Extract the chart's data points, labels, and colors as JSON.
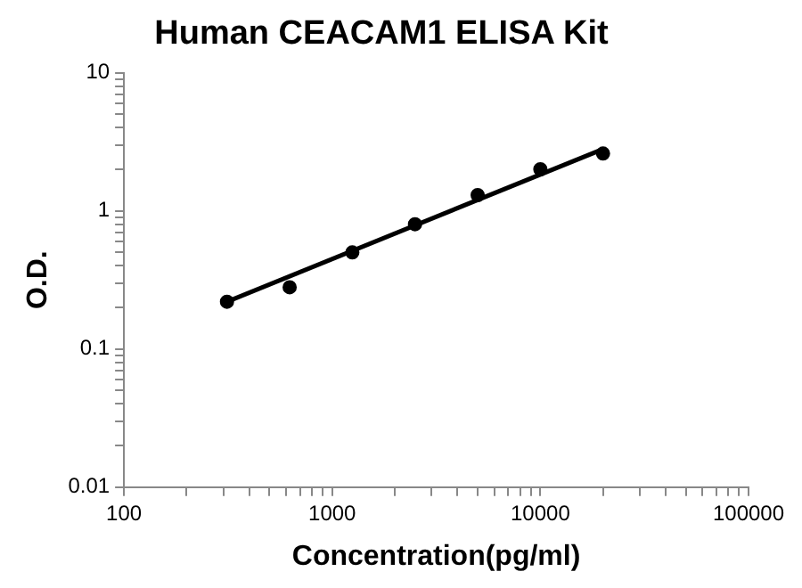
{
  "chart_data": {
    "type": "scatter",
    "title": "Human CEACAM1 ELISA Kit",
    "xlabel": "Concentration(pg/ml)",
    "ylabel": "O.D.",
    "log": "xy",
    "grid": false,
    "legend": false,
    "marker": "circle",
    "xlim": [
      100,
      100000
    ],
    "ylim": [
      0.01,
      10
    ],
    "xticks": [
      100,
      {
        "value": 200,
        "label": null
      },
      {
        "value": 300,
        "label": null
      },
      {
        "value": 400,
        "label": null
      },
      {
        "value": 500,
        "label": null
      },
      {
        "value": 600,
        "label": null
      },
      {
        "value": 700,
        "label": null
      },
      {
        "value": 800,
        "label": null
      },
      {
        "value": 900,
        "label": null
      },
      1000,
      {
        "value": 2000,
        "label": null
      },
      {
        "value": 3000,
        "label": null
      },
      {
        "value": 4000,
        "label": null
      },
      {
        "value": 5000,
        "label": null
      },
      {
        "value": 6000,
        "label": null
      },
      {
        "value": 7000,
        "label": null
      },
      {
        "value": 8000,
        "label": null
      },
      {
        "value": 9000,
        "label": null
      },
      10000,
      {
        "value": 20000,
        "label": null
      },
      {
        "value": 30000,
        "label": null
      },
      {
        "value": 40000,
        "label": null
      },
      {
        "value": 50000,
        "label": null
      },
      {
        "value": 60000,
        "label": null
      },
      {
        "value": 70000,
        "label": null
      },
      {
        "value": 80000,
        "label": null
      },
      {
        "value": 90000,
        "label": null
      },
      100000
    ],
    "yticks": [
      0.01,
      {
        "value": 0.02,
        "label": null
      },
      {
        "value": 0.03,
        "label": null
      },
      {
        "value": 0.04,
        "label": null
      },
      {
        "value": 0.05,
        "label": null
      },
      {
        "value": 0.06,
        "label": null
      },
      {
        "value": 0.07,
        "label": null
      },
      {
        "value": 0.08,
        "label": null
      },
      {
        "value": 0.09,
        "label": null
      },
      0.1,
      {
        "value": 0.2,
        "label": null
      },
      {
        "value": 0.3,
        "label": null
      },
      {
        "value": 0.4,
        "label": null
      },
      {
        "value": 0.5,
        "label": null
      },
      {
        "value": 0.6,
        "label": null
      },
      {
        "value": 0.7,
        "label": null
      },
      {
        "value": 0.8,
        "label": null
      },
      {
        "value": 0.9,
        "label": null
      },
      1,
      {
        "value": 2,
        "label": null
      },
      {
        "value": 3,
        "label": null
      },
      {
        "value": 4,
        "label": null
      },
      {
        "value": 5,
        "label": null
      },
      {
        "value": 6,
        "label": null
      },
      {
        "value": 7,
        "label": null
      },
      {
        "value": 8,
        "label": null
      },
      {
        "value": 9,
        "label": null
      },
      10
    ],
    "series": [
      {
        "type": "scatter",
        "color": "#000000",
        "x": [
          312.5,
          625,
          1250,
          2500,
          5000,
          10000,
          20000
        ],
        "values": [
          0.22,
          0.28,
          0.5,
          0.8,
          1.3,
          2.0,
          2.6
        ]
      },
      {
        "type": "line",
        "color": "#000000",
        "marker": "none",
        "line_style": "solid",
        "x": [
          312.5,
          20000
        ],
        "values": [
          0.22,
          2.8
        ]
      }
    ]
  }
}
